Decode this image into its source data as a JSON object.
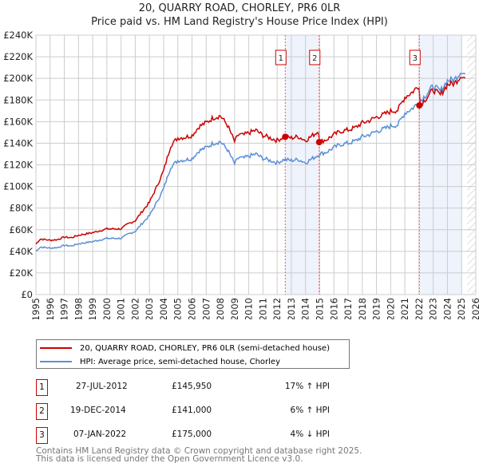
{
  "title": "20, QUARRY ROAD, CHORLEY, PR6 0LR",
  "subtitle": "Price paid vs. HM Land Registry's House Price Index (HPI)",
  "colors": {
    "property": "#cc0000",
    "hpi": "#5b8fd6",
    "shade": "#eef3fc"
  },
  "chart_data": {
    "type": "line",
    "xlim": [
      1995,
      2026
    ],
    "ylim": [
      0,
      240000
    ],
    "yticks": [
      {
        "v": 0,
        "label": "£0"
      },
      {
        "v": 20000,
        "label": "£20K"
      },
      {
        "v": 40000,
        "label": "£40K"
      },
      {
        "v": 60000,
        "label": "£60K"
      },
      {
        "v": 80000,
        "label": "£80K"
      },
      {
        "v": 100000,
        "label": "£100K"
      },
      {
        "v": 120000,
        "label": "£120K"
      },
      {
        "v": 140000,
        "label": "£140K"
      },
      {
        "v": 160000,
        "label": "£160K"
      },
      {
        "v": 180000,
        "label": "£180K"
      },
      {
        "v": 200000,
        "label": "£200K"
      },
      {
        "v": 220000,
        "label": "£220K"
      },
      {
        "v": 240000,
        "label": "£240K"
      }
    ],
    "xticks": [
      "1995",
      "1996",
      "1997",
      "1998",
      "1999",
      "2000",
      "2001",
      "2002",
      "2003",
      "2004",
      "2005",
      "2006",
      "2007",
      "2008",
      "2009",
      "2010",
      "2011",
      "2012",
      "2013",
      "2014",
      "2015",
      "2016",
      "2017",
      "2018",
      "2019",
      "2020",
      "2021",
      "2022",
      "2023",
      "2024",
      "2025",
      "2026"
    ],
    "hpi_series": {
      "name": "HPI: Average price, semi-detached house, Chorley",
      "x": [
        1995,
        1995.3,
        1996,
        1996.5,
        1997,
        1997.5,
        1998,
        1999,
        2000,
        2001,
        2001.5,
        2002,
        2002.5,
        2003,
        2003.5,
        2004,
        2004.5,
        2005,
        2005.5,
        2006,
        2006.5,
        2007,
        2007.5,
        2008,
        2008.5,
        2009,
        2009.3,
        2009.6,
        2010,
        2010.5,
        2011,
        2011.5,
        2012,
        2012.5,
        2013,
        2013.5,
        2014,
        2014.5,
        2015,
        2015.5,
        2016,
        2016.5,
        2017,
        2017.5,
        2018,
        2018.5,
        2019,
        2019.5,
        2020,
        2020.5,
        2021,
        2021.5,
        2022,
        2022.5,
        2023,
        2023.5,
        2024,
        2024.5,
        2025,
        2025.3
      ],
      "y": [
        40000,
        44000,
        43000,
        43500,
        45500,
        45000,
        47000,
        49000,
        52000,
        52000,
        56000,
        58500,
        66000,
        73000,
        85000,
        98000,
        118000,
        124000,
        124500,
        126000,
        133000,
        136000,
        140000,
        141500,
        134000,
        121000,
        127000,
        126000,
        128000,
        130000,
        126000,
        124000,
        122000,
        125000,
        124000,
        125000,
        122000,
        126000,
        130000,
        132000,
        136000,
        139000,
        140000,
        142000,
        146000,
        148000,
        151000,
        153000,
        156000,
        157000,
        168000,
        172000,
        178000,
        185000,
        193000,
        188000,
        198000,
        199000,
        207000,
        203000
      ]
    },
    "property_series": {
      "name": "20, QUARRY ROAD, CHORLEY, PR6 0LR (semi-detached house)"
    },
    "sales": [
      {
        "n": "1",
        "x": 2012.57,
        "y": 145950
      },
      {
        "n": "2",
        "x": 2014.96,
        "y": 141000
      },
      {
        "n": "3",
        "x": 2022.02,
        "y": 175000
      }
    ],
    "shaded": [
      [
        2012.57,
        2014.96
      ],
      [
        2022.02,
        2025.0
      ]
    ],
    "hatched_from": 2025.4
  },
  "legend": {
    "property": "20, QUARRY ROAD, CHORLEY, PR6 0LR (semi-detached house)",
    "hpi": "HPI: Average price, semi-detached house, Chorley"
  },
  "table": [
    {
      "n": "1",
      "date": "27-JUL-2012",
      "price": "£145,950",
      "hpi": "17% ↑ HPI"
    },
    {
      "n": "2",
      "date": "19-DEC-2014",
      "price": "£141,000",
      "hpi": "6% ↑ HPI"
    },
    {
      "n": "3",
      "date": "07-JAN-2022",
      "price": "£175,000",
      "hpi": "4% ↓ HPI"
    }
  ],
  "footer": {
    "line1": "Contains HM Land Registry data © Crown copyright and database right 2025.",
    "line2": "This data is licensed under the Open Government Licence v3.0."
  }
}
